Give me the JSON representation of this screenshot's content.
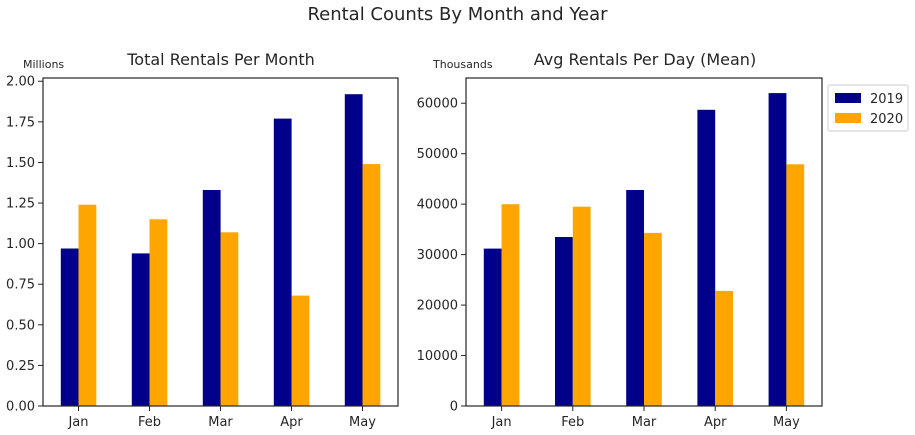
{
  "figure": {
    "title": "Rental Counts By Month and Year"
  },
  "colors": {
    "2019": "#00008b",
    "2020": "#ffa500",
    "axis": "#262626"
  },
  "chart_data": [
    {
      "type": "bar",
      "title": "Total Rentals Per Month",
      "unit_label": "Millions",
      "categories": [
        "Jan",
        "Feb",
        "Mar",
        "Apr",
        "May"
      ],
      "series": [
        {
          "name": "2019",
          "values": [
            0.97,
            0.94,
            1.33,
            1.77,
            1.92
          ]
        },
        {
          "name": "2020",
          "values": [
            1.24,
            1.15,
            1.07,
            0.68,
            1.49
          ]
        }
      ],
      "yticks": [
        "0.00",
        "0.25",
        "0.50",
        "0.75",
        "1.00",
        "1.25",
        "1.50",
        "1.75",
        "2.00"
      ],
      "ylim": [
        0,
        2.02
      ],
      "grid": false
    },
    {
      "type": "bar",
      "title": "Avg Rentals Per Day (Mean)",
      "unit_label": "Thousands",
      "categories": [
        "Jan",
        "Feb",
        "Mar",
        "Apr",
        "May"
      ],
      "series": [
        {
          "name": "2019",
          "values": [
            31200,
            33500,
            42800,
            58700,
            62000
          ]
        },
        {
          "name": "2020",
          "values": [
            40000,
            39500,
            34300,
            22800,
            47900
          ]
        }
      ],
      "yticks": [
        "0",
        "10000",
        "20000",
        "30000",
        "40000",
        "50000",
        "60000"
      ],
      "ylim": [
        0,
        65000
      ],
      "grid": false,
      "legend": {
        "placement": "outside-right-top",
        "entries": [
          "2019",
          "2020"
        ]
      }
    }
  ]
}
